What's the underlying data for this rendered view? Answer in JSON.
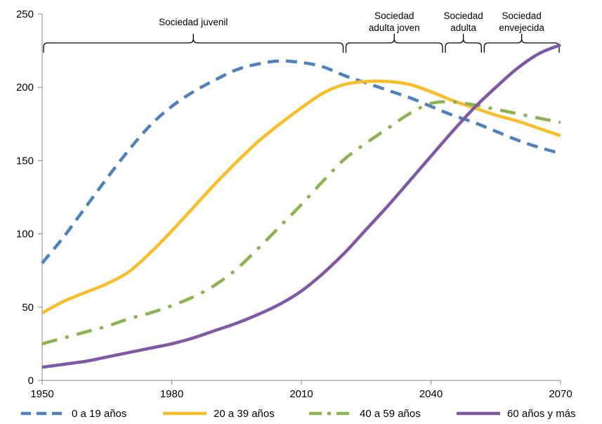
{
  "chart_data": {
    "type": "line",
    "title": "",
    "xlabel": "",
    "ylabel": "",
    "xlim": [
      1950,
      2070
    ],
    "ylim": [
      0,
      250
    ],
    "x_ticks": [
      1950,
      1980,
      2010,
      2040,
      2070
    ],
    "y_ticks": [
      0,
      50,
      100,
      150,
      200,
      250
    ],
    "grid": false,
    "legend_position": "bottom",
    "phases": [
      {
        "label_lines": [
          "Sociedad juvenil"
        ],
        "start": 1950,
        "end": 2020
      },
      {
        "label_lines": [
          "Sociedad",
          "adulta joven"
        ],
        "start": 2020,
        "end": 2043
      },
      {
        "label_lines": [
          "Sociedad",
          "adulta"
        ],
        "start": 2043,
        "end": 2052
      },
      {
        "label_lines": [
          "Sociedad",
          "envejecida"
        ],
        "start": 2052,
        "end": 2070
      }
    ],
    "series": [
      {
        "name": "0 a 19 años",
        "color": "#4f81bd",
        "style": "dashed",
        "points": [
          [
            1950,
            80
          ],
          [
            1955,
            98
          ],
          [
            1960,
            118
          ],
          [
            1965,
            138
          ],
          [
            1970,
            157
          ],
          [
            1975,
            174
          ],
          [
            1980,
            187
          ],
          [
            1985,
            197
          ],
          [
            1990,
            205
          ],
          [
            1995,
            212
          ],
          [
            2000,
            216
          ],
          [
            2005,
            218
          ],
          [
            2010,
            217
          ],
          [
            2015,
            214
          ],
          [
            2020,
            208
          ],
          [
            2025,
            203
          ],
          [
            2030,
            198
          ],
          [
            2035,
            193
          ],
          [
            2040,
            187
          ],
          [
            2045,
            181
          ],
          [
            2050,
            176
          ],
          [
            2055,
            170
          ],
          [
            2060,
            164
          ],
          [
            2065,
            159
          ],
          [
            2070,
            155
          ]
        ]
      },
      {
        "name": "20 a 39 años",
        "color": "#fbbd2a",
        "style": "solid",
        "points": [
          [
            1950,
            46
          ],
          [
            1955,
            54
          ],
          [
            1960,
            60
          ],
          [
            1965,
            66
          ],
          [
            1970,
            74
          ],
          [
            1975,
            87
          ],
          [
            1980,
            102
          ],
          [
            1985,
            118
          ],
          [
            1990,
            134
          ],
          [
            1995,
            149
          ],
          [
            2000,
            163
          ],
          [
            2005,
            175
          ],
          [
            2010,
            186
          ],
          [
            2015,
            196
          ],
          [
            2020,
            202
          ],
          [
            2025,
            204
          ],
          [
            2030,
            204
          ],
          [
            2035,
            202
          ],
          [
            2040,
            197
          ],
          [
            2045,
            191
          ],
          [
            2050,
            186
          ],
          [
            2055,
            181
          ],
          [
            2060,
            177
          ],
          [
            2065,
            172
          ],
          [
            2070,
            167
          ]
        ]
      },
      {
        "name": "40 a 59 años",
        "color": "#8db252",
        "style": "dashdot",
        "points": [
          [
            1950,
            25
          ],
          [
            1955,
            29
          ],
          [
            1960,
            33
          ],
          [
            1965,
            37
          ],
          [
            1970,
            42
          ],
          [
            1975,
            46
          ],
          [
            1980,
            51
          ],
          [
            1985,
            57
          ],
          [
            1990,
            65
          ],
          [
            1995,
            76
          ],
          [
            2000,
            90
          ],
          [
            2005,
            105
          ],
          [
            2010,
            120
          ],
          [
            2015,
            136
          ],
          [
            2020,
            151
          ],
          [
            2025,
            162
          ],
          [
            2030,
            172
          ],
          [
            2035,
            182
          ],
          [
            2040,
            189
          ],
          [
            2045,
            190
          ],
          [
            2050,
            188
          ],
          [
            2055,
            185
          ],
          [
            2060,
            182
          ],
          [
            2065,
            179
          ],
          [
            2070,
            176
          ]
        ]
      },
      {
        "name": "60 años y más",
        "color": "#7e59a5",
        "style": "solid",
        "points": [
          [
            1950,
            9
          ],
          [
            1955,
            11
          ],
          [
            1960,
            13
          ],
          [
            1965,
            16
          ],
          [
            1970,
            19
          ],
          [
            1975,
            22
          ],
          [
            1980,
            25
          ],
          [
            1985,
            29
          ],
          [
            1990,
            34
          ],
          [
            1995,
            39
          ],
          [
            2000,
            45
          ],
          [
            2005,
            52
          ],
          [
            2010,
            61
          ],
          [
            2015,
            73
          ],
          [
            2020,
            87
          ],
          [
            2025,
            103
          ],
          [
            2030,
            119
          ],
          [
            2035,
            136
          ],
          [
            2040,
            153
          ],
          [
            2045,
            170
          ],
          [
            2050,
            186
          ],
          [
            2055,
            200
          ],
          [
            2060,
            213
          ],
          [
            2065,
            223
          ],
          [
            2070,
            229
          ]
        ]
      }
    ]
  }
}
